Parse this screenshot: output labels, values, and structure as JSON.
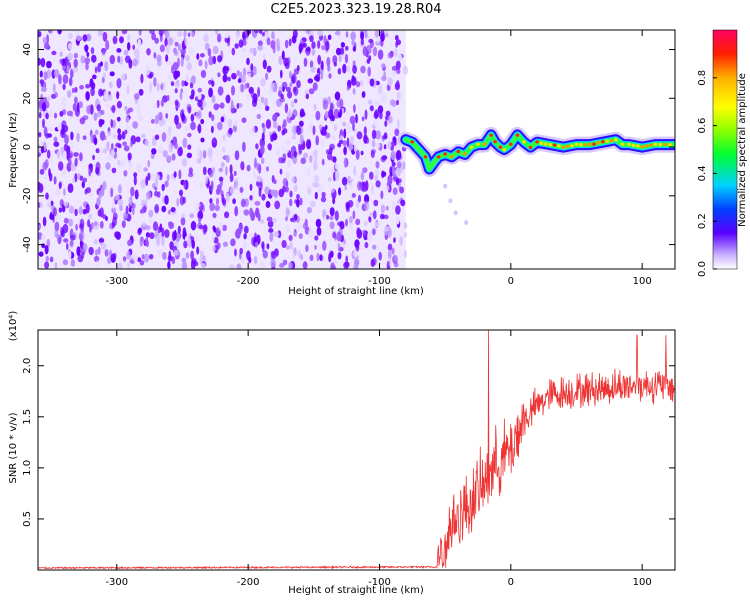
{
  "title": "C2E5.2023.323.19.28.R04",
  "chart_data": [
    {
      "type": "heatmap",
      "panel": "top",
      "xlabel": "Height of straight line (km)",
      "ylabel": "Frequency (Hz)",
      "xlim": [
        -360,
        125
      ],
      "ylim": [
        -50,
        48
      ],
      "x_ticks": [
        -300,
        -200,
        -100,
        0,
        100
      ],
      "y_ticks": [
        -40,
        -20,
        0,
        20,
        40
      ],
      "noise_region_x": [
        -360,
        -80
      ],
      "signal_track": {
        "x": [
          -80,
          -75,
          -70,
          -65,
          -62,
          -58,
          -55,
          -50,
          -45,
          -40,
          -35,
          -30,
          -25,
          -20,
          -15,
          -12,
          -8,
          -5,
          0,
          5,
          10,
          15,
          20,
          30,
          40,
          50,
          60,
          70,
          80,
          85,
          90,
          100,
          110,
          125
        ],
        "y": [
          3,
          2,
          -1,
          -4,
          -9,
          -6,
          -4,
          -3,
          -4,
          -2,
          -3,
          0,
          1,
          1,
          5,
          2,
          0,
          -1,
          1,
          5,
          2,
          0,
          2,
          1,
          0,
          1,
          1,
          2,
          3,
          1,
          1,
          0,
          1,
          1
        ]
      },
      "colorbar": {
        "label": "Normalized spectral amplitude",
        "range": [
          0,
          1
        ],
        "ticks": [
          "0.0",
          "0.2",
          "0.4",
          "0.6",
          "0.8"
        ]
      }
    },
    {
      "type": "line",
      "panel": "bottom",
      "xlabel": "Height of straight line (km)",
      "ylabel": "SNR (10 * v/v)",
      "yscale_label": "(x10⁴)",
      "xlim": [
        -360,
        125
      ],
      "ylim": [
        0,
        2.35
      ],
      "x_ticks": [
        -300,
        -200,
        -100,
        0,
        100
      ],
      "y_ticks": [
        "0.5",
        "1.0",
        "1.5",
        "2.0"
      ],
      "color": "#ee3333",
      "envelope": {
        "x": [
          -360,
          -56,
          -52,
          -48,
          -44,
          -40,
          -36,
          -32,
          -28,
          -24,
          -20,
          -16,
          -12,
          -8,
          -4,
          0,
          5,
          10,
          20,
          30,
          40,
          60,
          80,
          100,
          125
        ],
        "y": [
          0.02,
          0.03,
          0.12,
          0.3,
          0.45,
          0.5,
          0.55,
          0.6,
          0.7,
          0.75,
          0.8,
          0.95,
          1.0,
          1.05,
          1.1,
          1.15,
          1.3,
          1.45,
          1.6,
          1.7,
          1.72,
          1.75,
          1.78,
          1.8,
          1.78
        ]
      },
      "spikes": [
        {
          "x": -17,
          "y": 2.35
        },
        {
          "x": 96,
          "y": 2.3
        },
        {
          "x": 118,
          "y": 2.3
        }
      ]
    }
  ]
}
